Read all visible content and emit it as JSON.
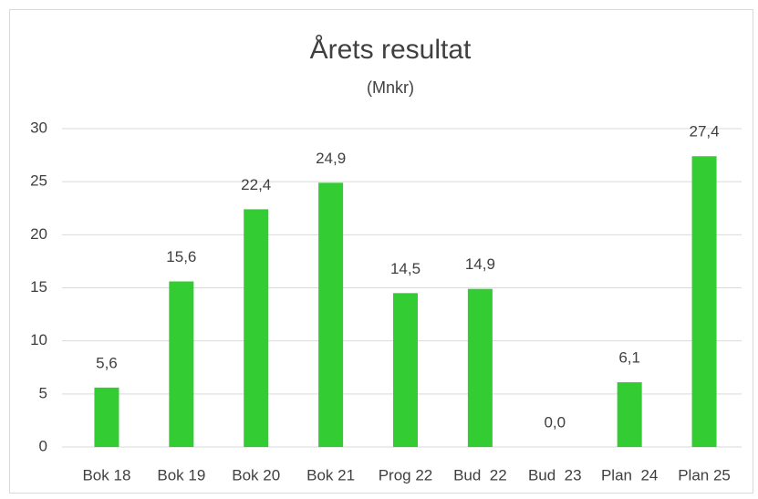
{
  "chart_data": {
    "type": "bar",
    "title": "Årets resultat",
    "subtitle": "(Mnkr)",
    "categories": [
      "Bok 18",
      "Bok 19",
      "Bok 20",
      "Bok 21",
      "Prog 22",
      "Bud  22",
      "Bud  23",
      "Plan  24",
      "Plan 25"
    ],
    "values": [
      5.6,
      15.6,
      22.4,
      24.9,
      14.5,
      14.9,
      0,
      6.1,
      27.4
    ],
    "value_labels": [
      "5,6",
      "15,6",
      "22,4",
      "24,9",
      "14,5",
      "14,9",
      "0,0",
      "6,1",
      "27,4"
    ],
    "color": "#33cc33",
    "ylim": [
      0,
      30
    ],
    "yticks": [
      0,
      5,
      10,
      15,
      20,
      25,
      30
    ],
    "grid": true
  }
}
